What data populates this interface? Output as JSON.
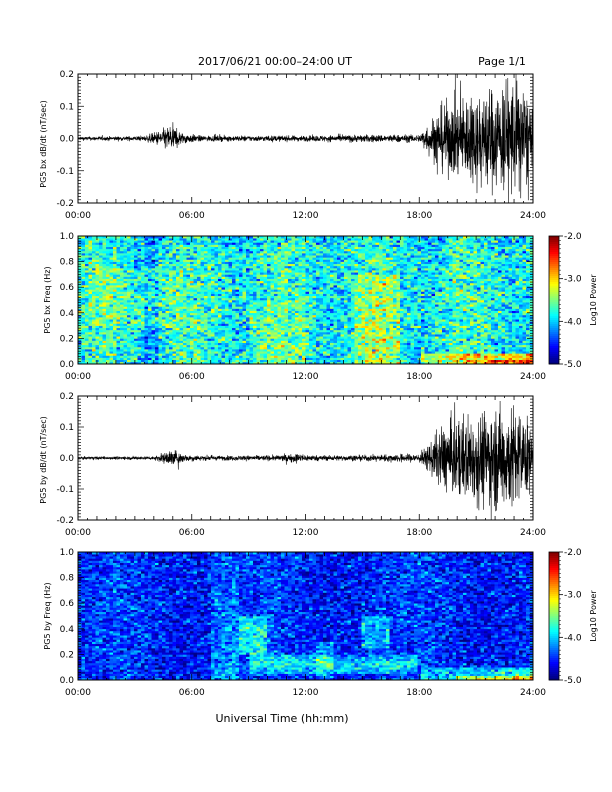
{
  "header": {
    "title": "2017/06/21  00:00–24:00 UT",
    "page": "Page 1/1"
  },
  "xlabel": "Universal Time (hh:mm)",
  "chart_data": [
    {
      "type": "line",
      "name": "panel-bx-wave",
      "ylabel": "PG5 bx dB/dt (nT/sec)",
      "xlim": [
        0,
        24
      ],
      "ylim": [
        -0.2,
        0.2
      ],
      "x_ticks": [
        "00:00",
        "06:00",
        "12:00",
        "18:00",
        "24:00"
      ],
      "y_ticks": [
        "-0.2",
        "-0.1",
        "0.0",
        "0.1",
        "0.2"
      ],
      "envelope": {
        "x": [
          0,
          3.5,
          4.5,
          4.9,
          5.5,
          6.5,
          12,
          15,
          18,
          18.6,
          19.2,
          20,
          21,
          22,
          23,
          23.6,
          24
        ],
        "amp": [
          0.004,
          0.005,
          0.02,
          0.03,
          0.012,
          0.006,
          0.006,
          0.008,
          0.008,
          0.04,
          0.07,
          0.085,
          0.1,
          0.11,
          0.13,
          0.11,
          0.05
        ]
      }
    },
    {
      "type": "heatmap",
      "name": "panel-bx-spec",
      "ylabel": "PG5 bx Freq (Hz)",
      "xlim": [
        0,
        24
      ],
      "ylim": [
        0,
        1.0
      ],
      "x_ticks": [
        "00:00",
        "06:00",
        "12:00",
        "18:00",
        "24:00"
      ],
      "y_ticks": [
        "0.0",
        "0.2",
        "0.4",
        "0.6",
        "0.8",
        "1.0"
      ],
      "colorbar": {
        "label": "Log10 Power",
        "min": -5.0,
        "max": -2.0,
        "ticks": [
          "-2.0",
          "-3.0",
          "-4.0",
          "-5.0"
        ]
      }
    },
    {
      "type": "line",
      "name": "panel-by-wave",
      "ylabel": "PG5 by dB/dt (nT/sec)",
      "xlim": [
        0,
        24
      ],
      "ylim": [
        -0.2,
        0.2
      ],
      "x_ticks": [
        "00:00",
        "06:00",
        "12:00",
        "18:00",
        "24:00"
      ],
      "y_ticks": [
        "-0.2",
        "-0.1",
        "0.0",
        "0.1",
        "0.2"
      ],
      "envelope": {
        "x": [
          0,
          4,
          4.6,
          5.0,
          5.6,
          7,
          10.5,
          11.5,
          12.5,
          15,
          16.5,
          18,
          18.5,
          19.2,
          20,
          21,
          22.5,
          23.3,
          24
        ],
        "amp": [
          0.003,
          0.004,
          0.012,
          0.02,
          0.008,
          0.005,
          0.006,
          0.01,
          0.006,
          0.006,
          0.008,
          0.01,
          0.03,
          0.07,
          0.09,
          0.1,
          0.12,
          0.11,
          0.06
        ]
      }
    },
    {
      "type": "heatmap",
      "name": "panel-by-spec",
      "ylabel": "PG5 by Freq (Hz)",
      "xlim": [
        0,
        24
      ],
      "ylim": [
        0,
        1.0
      ],
      "x_ticks": [
        "00:00",
        "06:00",
        "12:00",
        "18:00",
        "24:00"
      ],
      "y_ticks": [
        "0.0",
        "0.2",
        "0.4",
        "0.6",
        "0.8",
        "1.0"
      ],
      "colorbar": {
        "label": "Log10 Power",
        "min": -5.0,
        "max": -2.0,
        "ticks": [
          "-2.0",
          "-3.0",
          "-4.0",
          "-5.0"
        ]
      }
    }
  ]
}
